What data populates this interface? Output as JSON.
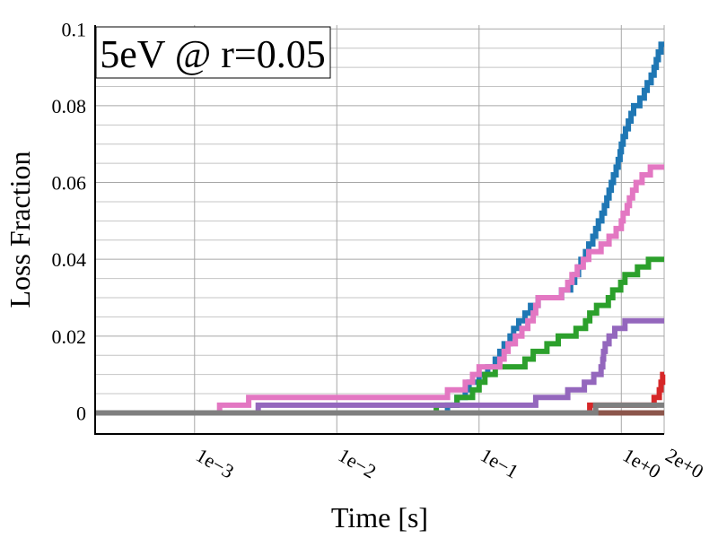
{
  "chart_data": {
    "type": "line",
    "step": true,
    "title": "5eV @ r=0.05",
    "xlabel": "Time [s]",
    "ylabel": "Loss Fraction",
    "xscale": "log",
    "xlim": [
      0.0002,
      2.0
    ],
    "ylim": [
      -0.0055,
      0.101
    ],
    "x_ticks": [
      {
        "value": 0.001,
        "label": "1e−3"
      },
      {
        "value": 0.01,
        "label": "1e−2"
      },
      {
        "value": 0.1,
        "label": "1e−1"
      },
      {
        "value": 1.0,
        "label": "1e+0"
      },
      {
        "value": 2.0,
        "label": "2e+0"
      }
    ],
    "y_ticks": [
      {
        "value": 0,
        "label": "0"
      },
      {
        "value": 0.02,
        "label": "0.02"
      },
      {
        "value": 0.04,
        "label": "0.04"
      },
      {
        "value": 0.06,
        "label": "0.06"
      },
      {
        "value": 0.08,
        "label": "0.08"
      },
      {
        "value": 0.1,
        "label": "0.1"
      }
    ],
    "y_minor_grid": [
      0.005,
      0.01,
      0.015,
      0.025,
      0.03,
      0.035,
      0.045,
      0.05,
      0.055,
      0.065,
      0.07,
      0.075,
      0.085,
      0.09,
      0.095
    ],
    "grid": true,
    "series": [
      {
        "name": "blue",
        "color": "#1f77b4",
        "points": [
          [
            0.0002,
            0
          ],
          [
            0.025,
            0
          ],
          [
            0.06,
            0.002
          ],
          [
            0.07,
            0.004
          ],
          [
            0.08,
            0.006
          ],
          [
            0.085,
            0.008
          ],
          [
            0.1,
            0.01
          ],
          [
            0.115,
            0.012
          ],
          [
            0.13,
            0.014
          ],
          [
            0.14,
            0.016
          ],
          [
            0.15,
            0.018
          ],
          [
            0.165,
            0.02
          ],
          [
            0.175,
            0.022
          ],
          [
            0.19,
            0.024
          ],
          [
            0.21,
            0.026
          ],
          [
            0.23,
            0.028
          ],
          [
            0.26,
            0.03
          ],
          [
            0.38,
            0.032
          ],
          [
            0.44,
            0.034
          ],
          [
            0.47,
            0.036
          ],
          [
            0.5,
            0.038
          ],
          [
            0.52,
            0.04
          ],
          [
            0.56,
            0.042
          ],
          [
            0.59,
            0.044
          ],
          [
            0.63,
            0.046
          ],
          [
            0.66,
            0.048
          ],
          [
            0.69,
            0.05
          ],
          [
            0.73,
            0.052
          ],
          [
            0.76,
            0.054
          ],
          [
            0.79,
            0.056
          ],
          [
            0.82,
            0.058
          ],
          [
            0.85,
            0.06
          ],
          [
            0.88,
            0.062
          ],
          [
            0.92,
            0.064
          ],
          [
            0.95,
            0.066
          ],
          [
            0.98,
            0.068
          ],
          [
            1.0,
            0.07
          ],
          [
            1.03,
            0.072
          ],
          [
            1.07,
            0.074
          ],
          [
            1.12,
            0.076
          ],
          [
            1.17,
            0.078
          ],
          [
            1.22,
            0.08
          ],
          [
            1.35,
            0.082
          ],
          [
            1.45,
            0.084
          ],
          [
            1.52,
            0.086
          ],
          [
            1.62,
            0.088
          ],
          [
            1.7,
            0.09
          ],
          [
            1.76,
            0.092
          ],
          [
            1.82,
            0.094
          ],
          [
            1.9,
            0.096
          ],
          [
            2.0,
            0.096
          ]
        ]
      },
      {
        "name": "green",
        "color": "#2ca02c",
        "points": [
          [
            0.0002,
            0
          ],
          [
            0.04,
            0
          ],
          [
            0.05,
            0.002
          ],
          [
            0.07,
            0.004
          ],
          [
            0.09,
            0.006
          ],
          [
            0.1,
            0.008
          ],
          [
            0.11,
            0.01
          ],
          [
            0.13,
            0.012
          ],
          [
            0.2,
            0.012
          ],
          [
            0.21,
            0.014
          ],
          [
            0.24,
            0.016
          ],
          [
            0.3,
            0.018
          ],
          [
            0.36,
            0.02
          ],
          [
            0.48,
            0.022
          ],
          [
            0.56,
            0.024
          ],
          [
            0.6,
            0.026
          ],
          [
            0.67,
            0.028
          ],
          [
            0.81,
            0.03
          ],
          [
            0.87,
            0.032
          ],
          [
            0.99,
            0.034
          ],
          [
            1.06,
            0.036
          ],
          [
            1.3,
            0.038
          ],
          [
            1.55,
            0.04
          ],
          [
            2.0,
            0.04
          ]
        ]
      },
      {
        "name": "pink",
        "color": "#e377c2",
        "points": [
          [
            0.0002,
            0
          ],
          [
            0.0014,
            0
          ],
          [
            0.0015,
            0.002
          ],
          [
            0.0024,
            0.004
          ],
          [
            0.055,
            0.004
          ],
          [
            0.06,
            0.006
          ],
          [
            0.08,
            0.008
          ],
          [
            0.09,
            0.01
          ],
          [
            0.1,
            0.012
          ],
          [
            0.14,
            0.014
          ],
          [
            0.15,
            0.016
          ],
          [
            0.16,
            0.018
          ],
          [
            0.18,
            0.02
          ],
          [
            0.2,
            0.022
          ],
          [
            0.22,
            0.024
          ],
          [
            0.24,
            0.026
          ],
          [
            0.25,
            0.028
          ],
          [
            0.26,
            0.03
          ],
          [
            0.38,
            0.032
          ],
          [
            0.42,
            0.034
          ],
          [
            0.45,
            0.036
          ],
          [
            0.49,
            0.038
          ],
          [
            0.54,
            0.04
          ],
          [
            0.59,
            0.042
          ],
          [
            0.72,
            0.044
          ],
          [
            0.82,
            0.046
          ],
          [
            0.92,
            0.048
          ],
          [
            1.0,
            0.05
          ],
          [
            1.03,
            0.052
          ],
          [
            1.1,
            0.054
          ],
          [
            1.14,
            0.056
          ],
          [
            1.2,
            0.058
          ],
          [
            1.27,
            0.06
          ],
          [
            1.4,
            0.062
          ],
          [
            1.6,
            0.064
          ],
          [
            1.9,
            0.064
          ],
          [
            2.0,
            0.064
          ]
        ]
      },
      {
        "name": "purple",
        "color": "#9467bd",
        "points": [
          [
            0.0002,
            0
          ],
          [
            0.0026,
            0
          ],
          [
            0.0028,
            0.002
          ],
          [
            0.24,
            0.002
          ],
          [
            0.25,
            0.004
          ],
          [
            0.42,
            0.006
          ],
          [
            0.55,
            0.008
          ],
          [
            0.64,
            0.01
          ],
          [
            0.72,
            0.012
          ],
          [
            0.74,
            0.014
          ],
          [
            0.75,
            0.016
          ],
          [
            0.77,
            0.018
          ],
          [
            0.82,
            0.02
          ],
          [
            0.9,
            0.022
          ],
          [
            1.06,
            0.024
          ],
          [
            1.3,
            0.024
          ],
          [
            2.0,
            0.024
          ]
        ]
      },
      {
        "name": "red",
        "color": "#d62728",
        "points": [
          [
            0.0002,
            0
          ],
          [
            0.58,
            0
          ],
          [
            0.6,
            0.002
          ],
          [
            1.1,
            0.002
          ],
          [
            1.7,
            0.004
          ],
          [
            1.85,
            0.006
          ],
          [
            1.9,
            0.008
          ],
          [
            1.95,
            0.01
          ],
          [
            2.0,
            0.01
          ]
        ]
      },
      {
        "name": "brown",
        "color": "#8c564b",
        "points": [
          [
            0.0002,
            0
          ],
          [
            2.0,
            0
          ]
        ]
      },
      {
        "name": "gray",
        "color": "#7f7f7f",
        "points": [
          [
            0.0002,
            0
          ],
          [
            0.62,
            0
          ],
          [
            0.66,
            0.002
          ],
          [
            2.0,
            0.002
          ]
        ]
      }
    ]
  }
}
